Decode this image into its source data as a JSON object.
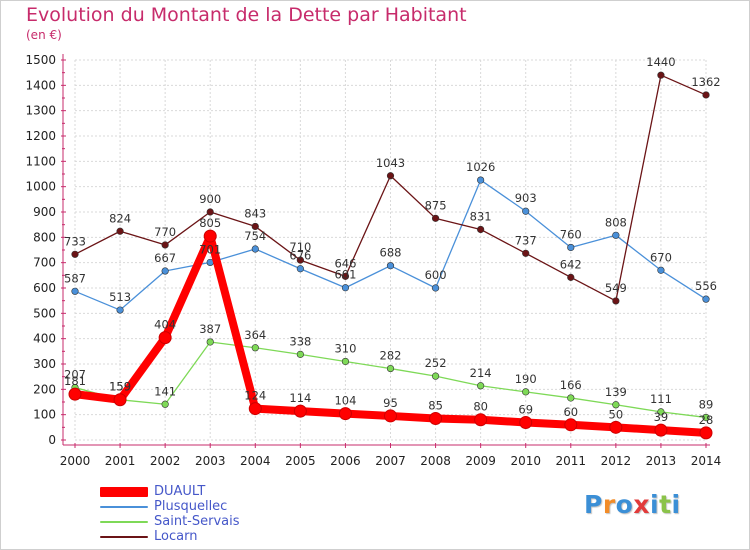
{
  "header": {
    "title": "Evolution du Montant de la Dette par Habitant",
    "subtitle": "(en €)"
  },
  "logo": {
    "text": "Proxiti",
    "letter_colors": [
      "#3b8fd6",
      "#f28c28",
      "#3b8fd6",
      "#e23a3a",
      "#3b8fd6",
      "#8bc34a",
      "#3b8fd6"
    ]
  },
  "chart_data": {
    "type": "line",
    "title": "Evolution du Montant de la Dette par Habitant",
    "subtitle": "(en €)",
    "xlabel": "",
    "ylabel": "",
    "x": [
      "2000",
      "2001",
      "2002",
      "2003",
      "2004",
      "2005",
      "2006",
      "2007",
      "2008",
      "2009",
      "2010",
      "2011",
      "2012",
      "2013",
      "2014"
    ],
    "ylim": [
      0,
      1500
    ],
    "yticks": [
      0,
      100,
      200,
      300,
      400,
      500,
      600,
      700,
      800,
      900,
      1000,
      1100,
      1200,
      1300,
      1400,
      1500
    ],
    "grid": true,
    "legend_position": "bottom-left",
    "series": [
      {
        "name": "DUAULT",
        "color": "#ff0000",
        "values": [
          181,
          159,
          404,
          805,
          124,
          114,
          104,
          95,
          85,
          80,
          69,
          60,
          50,
          39,
          28
        ]
      },
      {
        "name": "Plusquellec",
        "color": "#4a90d9",
        "values": [
          587,
          513,
          667,
          701,
          754,
          676,
          601,
          688,
          600,
          1026,
          903,
          760,
          808,
          670,
          556
        ]
      },
      {
        "name": "Saint-Servais",
        "color": "#7ed957",
        "values": [
          207,
          159,
          141,
          387,
          364,
          338,
          310,
          282,
          252,
          214,
          190,
          166,
          139,
          111,
          89
        ]
      },
      {
        "name": "Locarn",
        "color": "#6b1416",
        "values": [
          733,
          824,
          770,
          900,
          843,
          710,
          646,
          1043,
          875,
          831,
          737,
          642,
          549,
          1440,
          1362
        ]
      }
    ]
  }
}
